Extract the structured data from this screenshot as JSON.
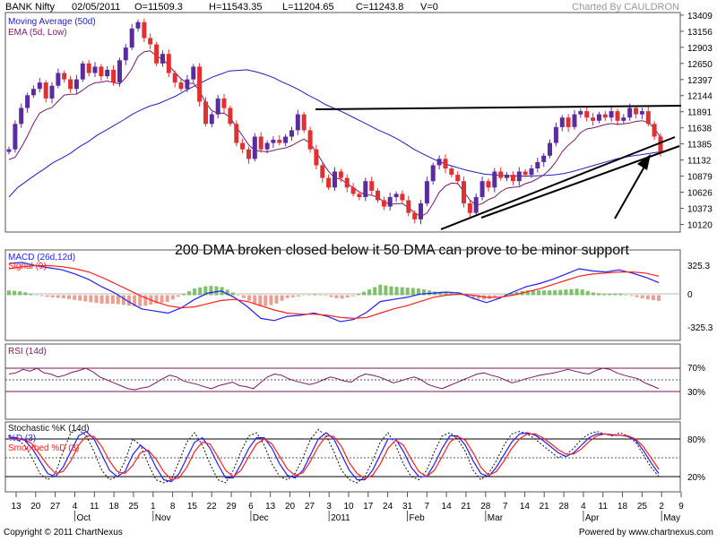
{
  "header": {
    "symbol": "BANK Nifty",
    "date": "02/05/2011",
    "open": "O=11509.3",
    "high": "H=11543.35",
    "low": "L=11204.65",
    "close": "C=11243.8",
    "volume": "V=0",
    "credit": "Charted By CAULDRON"
  },
  "footer": {
    "copyright": "Copyright © 2011 ChartNexus",
    "powered": "Powered by www.chartnexus.com"
  },
  "colors": {
    "up": "#5a2ca0",
    "down": "#e03030",
    "ma50": "#1f1fbf",
    "ema5": "#7a1a6a",
    "macd": "#1f1fff",
    "signal": "#ff2020",
    "hist_pos": "#7fc06a",
    "hist_neg": "#e8a090",
    "rsi": "#7a1a5a",
    "k": "#111111",
    "d": "#1f1fff",
    "sd": "#ff2020"
  },
  "chart_data": [
    {
      "type": "candlestick",
      "title": "BANK Nifty",
      "legend": [
        "Moving Average (50d)",
        "EMA (5d, Low)"
      ],
      "annotation": "200 DMA broken closed below it 50 DMA can prove to be minor support",
      "y_ticks": [
        "13409",
        "13156",
        "12903",
        "12650",
        "12397",
        "12144",
        "11891",
        "11638",
        "11385",
        "11132",
        "10879",
        "10626",
        "10373",
        "10120"
      ],
      "ylim": [
        10000,
        13450
      ],
      "x_ticks": [
        "13",
        "20",
        "27",
        "4",
        "11",
        "18",
        "25",
        "1",
        "8",
        "15",
        "22",
        "29",
        "6",
        "13",
        "20",
        "27",
        "3",
        "10",
        "17",
        "24",
        "31",
        "7",
        "14",
        "21",
        "28",
        "7",
        "14",
        "21",
        "28",
        "4",
        "11",
        "18",
        "25",
        "2",
        "9"
      ],
      "x_month_labels": [
        "Oct",
        "Nov",
        "Dec",
        "2011",
        "Feb",
        "Mar",
        "Apr",
        "May"
      ],
      "x_month_tick_index": [
        3,
        7,
        12,
        16,
        20,
        24,
        29,
        33
      ],
      "close_series": [
        11300,
        11700,
        11950,
        12150,
        12250,
        12350,
        12100,
        12300,
        12500,
        12400,
        12250,
        12400,
        12650,
        12500,
        12600,
        12450,
        12550,
        12350,
        12700,
        12900,
        13200,
        13300,
        13050,
        12950,
        12650,
        12800,
        12500,
        12350,
        12250,
        12400,
        12600,
        12050,
        11700,
        11850,
        12100,
        11950,
        11700,
        11400,
        11300,
        11150,
        11500,
        11300,
        11400,
        11450,
        11400,
        11500,
        11600,
        11850,
        11600,
        11300,
        11050,
        10850,
        10700,
        10950,
        10850,
        10700,
        10600,
        10550,
        10800,
        10650,
        10500,
        10400,
        10550,
        10600,
        10500,
        10300,
        10200,
        10450,
        10800,
        11050,
        11150,
        11000,
        10900,
        10800,
        10450,
        10300,
        10550,
        10800,
        10700,
        10950,
        10850,
        10900,
        10800,
        10950,
        10900,
        11000,
        11100,
        11200,
        11400,
        11650,
        11800,
        11650,
        11850,
        11900,
        11800,
        11750,
        11850,
        11800,
        11900,
        11750,
        11800,
        11950,
        11850,
        11900,
        11700,
        11500,
        11250
      ],
      "ma50_series": [
        10550,
        10700,
        10800,
        10900,
        10990,
        11090,
        11160,
        11240,
        11340,
        11420,
        11520,
        11600,
        11680,
        11760,
        11850,
        11920,
        11980,
        12020,
        12080,
        12140,
        12220,
        12290,
        12360,
        12430,
        12480,
        12530,
        12540,
        12550,
        12520,
        12480,
        12430,
        12360,
        12300,
        12230,
        12150,
        12080,
        12000,
        11940,
        11880,
        11810,
        11740,
        11670,
        11600,
        11540,
        11470,
        11390,
        11300,
        11230,
        11160,
        11100,
        11050,
        11010,
        10970,
        10940,
        10910,
        10900,
        10890,
        10885,
        10880,
        10880,
        10885,
        10890,
        10900,
        10920,
        10950,
        10990,
        11030,
        11070,
        11110,
        11150,
        11180,
        11200,
        11220,
        11240,
        11260
      ]
    },
    {
      "type": "line",
      "title": "MACD (26d,12d)",
      "series": [
        {
          "name": "MACD (26d,12d)"
        },
        {
          "name": "Signal (9)"
        }
      ],
      "y_ticks": [
        "325.3",
        "0",
        "-325.3"
      ],
      "ylim": [
        -420,
        420
      ],
      "macd": [
        300,
        310,
        280,
        260,
        240,
        200,
        150,
        80,
        20,
        -60,
        -130,
        -150,
        -170,
        -120,
        -40,
        20,
        40,
        -20,
        -110,
        -220,
        -240,
        -200,
        -190,
        -170,
        -200,
        -250,
        -230,
        -160,
        -60,
        -40,
        -20,
        10,
        20,
        30,
        20,
        -30,
        -70,
        -30,
        30,
        80,
        110,
        150,
        200,
        250,
        230,
        220,
        240,
        210,
        170,
        120
      ],
      "signal": [
        250,
        270,
        280,
        280,
        270,
        250,
        220,
        170,
        110,
        50,
        -10,
        -60,
        -100,
        -120,
        -110,
        -80,
        -50,
        -40,
        -60,
        -100,
        -140,
        -170,
        -180,
        -180,
        -190,
        -210,
        -220,
        -210,
        -170,
        -130,
        -100,
        -60,
        -20,
        0,
        10,
        0,
        -20,
        -20,
        0,
        30,
        60,
        100,
        140,
        180,
        200,
        210,
        220,
        220,
        210,
        180
      ]
    },
    {
      "type": "line",
      "title": "RSI (14d)",
      "y_ticks": [
        "70%",
        "30%"
      ],
      "ylim": [
        0,
        100
      ],
      "values": [
        60,
        62,
        68,
        65,
        70,
        62,
        60,
        55,
        58,
        63,
        66,
        70,
        64,
        55,
        50,
        45,
        40,
        35,
        33,
        36,
        38,
        45,
        52,
        58,
        55,
        48,
        45,
        42,
        38,
        35,
        40,
        43,
        46,
        40,
        38,
        35,
        45,
        55,
        60,
        58,
        52,
        48,
        45,
        42,
        45,
        50,
        55,
        52,
        48,
        46,
        55,
        60,
        58,
        55,
        50,
        45,
        48,
        52,
        55,
        50,
        42,
        38,
        35,
        40,
        45,
        50,
        55,
        60,
        62,
        58,
        55,
        50,
        45,
        48,
        52,
        55,
        58,
        60,
        62,
        65,
        68,
        65,
        62,
        60,
        66,
        70,
        68,
        62,
        58,
        55,
        52,
        45,
        40,
        35
      ]
    },
    {
      "type": "line",
      "title": "Stochastic %K (14d)",
      "series": [
        {
          "name": "Stochastic %K (14d)"
        },
        {
          "name": "%D (3)"
        },
        {
          "name": "Smoothed %D (3)"
        }
      ],
      "y_ticks": [
        "80%",
        "20%"
      ],
      "ylim": [
        0,
        100
      ],
      "k": [
        85,
        80,
        70,
        50,
        25,
        15,
        25,
        60,
        90,
        95,
        85,
        60,
        30,
        15,
        20,
        45,
        80,
        70,
        40,
        15,
        10,
        15,
        45,
        75,
        90,
        70,
        40,
        15,
        10,
        30,
        60,
        85,
        90,
        70,
        40,
        20,
        15,
        25,
        50,
        80,
        95,
        85,
        60,
        30,
        15,
        10,
        20,
        45,
        75,
        90,
        70,
        40,
        20,
        15,
        30,
        60,
        85,
        90,
        80,
        60,
        30,
        15,
        25,
        45,
        70,
        88,
        92,
        88,
        80,
        70,
        60,
        50,
        55,
        65,
        80,
        88,
        92,
        88,
        85,
        90,
        85,
        75,
        55,
        35,
        20
      ],
      "d": [
        82,
        82,
        78,
        65,
        45,
        25,
        20,
        35,
        60,
        85,
        92,
        80,
        55,
        30,
        20,
        28,
        55,
        70,
        60,
        35,
        15,
        12,
        25,
        50,
        75,
        82,
        65,
        40,
        18,
        18,
        40,
        65,
        82,
        82,
        65,
        40,
        22,
        18,
        30,
        55,
        80,
        90,
        80,
        55,
        30,
        15,
        15,
        30,
        55,
        80,
        80,
        60,
        35,
        20,
        20,
        40,
        65,
        85,
        85,
        70,
        45,
        25,
        20,
        35,
        55,
        75,
        88,
        90,
        86,
        78,
        68,
        58,
        52,
        58,
        70,
        82,
        88,
        88,
        86,
        86,
        84,
        78,
        62,
        42,
        25
      ],
      "sd": [
        80,
        81,
        80,
        72,
        55,
        38,
        25,
        28,
        45,
        70,
        85,
        84,
        68,
        45,
        28,
        25,
        38,
        58,
        62,
        48,
        28,
        15,
        18,
        35,
        60,
        75,
        72,
        52,
        30,
        20,
        30,
        52,
        72,
        80,
        72,
        52,
        32,
        22,
        26,
        45,
        68,
        85,
        84,
        68,
        42,
        25,
        17,
        22,
        40,
        65,
        78,
        70,
        48,
        28,
        20,
        30,
        52,
        75,
        84,
        78,
        58,
        35,
        22,
        28,
        45,
        65,
        80,
        88,
        88,
        82,
        73,
        63,
        56,
        56,
        64,
        76,
        85,
        88,
        87,
        86,
        85,
        80,
        68,
        50,
        32
      ]
    }
  ]
}
